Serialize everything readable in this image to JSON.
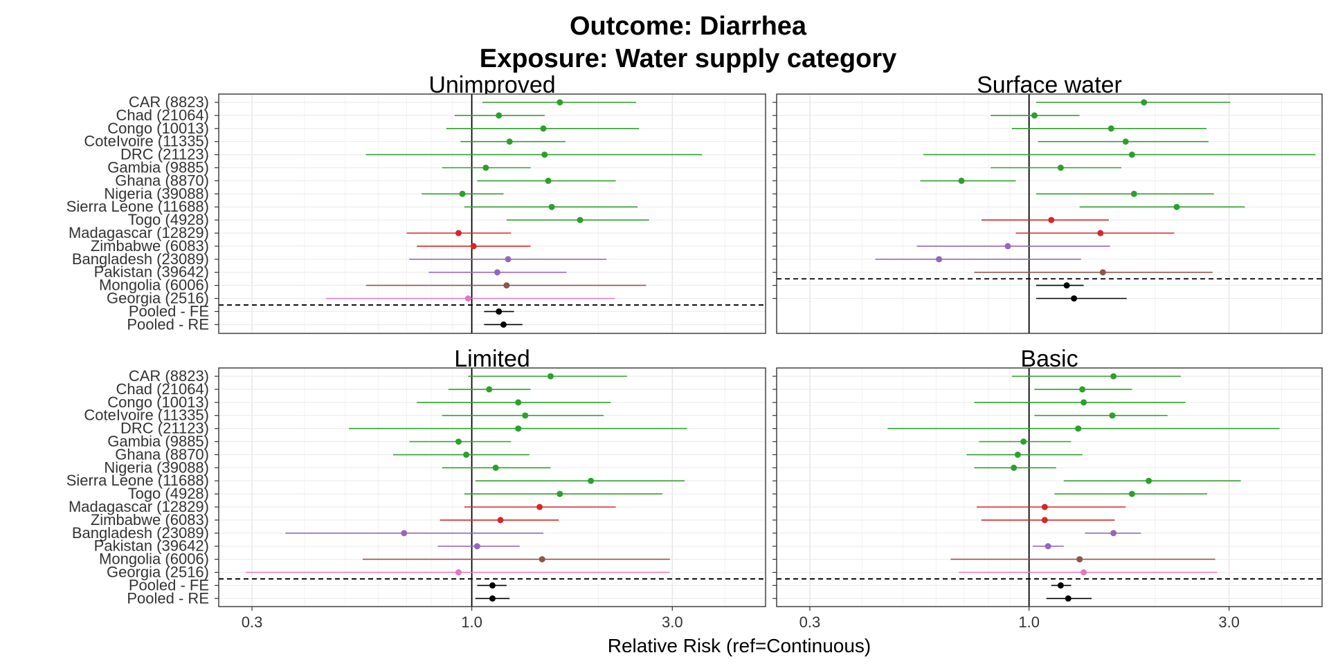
{
  "title_line1": "Outcome: Diarrhea",
  "title_line2": "Exposure: Water supply category",
  "xlabel": "Relative Risk (ref=Continuous)",
  "chart_data": {
    "type": "scatter",
    "subtype": "forest-plot",
    "x_scale": "log",
    "xlim": [
      0.25,
      5.0
    ],
    "x_ticks": [
      0.3,
      1.0,
      3.0
    ],
    "x_tick_labels": [
      "0.3",
      "1.0",
      "3.0"
    ],
    "reference_line": 1.0,
    "grid": true,
    "rows": [
      "CAR (8823)",
      "Chad (21064)",
      "Congo (10013)",
      "CoteIvoire (11335)",
      "DRC (21123)",
      "Gambia (9885)",
      "Ghana (8870)",
      "Nigeria (39088)",
      "Sierra Leone (11688)",
      "Togo (4928)",
      "Madagascar (12829)",
      "Zimbabwe (6083)",
      "Bangladesh (23089)",
      "Pakistan (39642)",
      "Mongolia (6006)",
      "Georgia (2516)",
      "Pooled - FE",
      "Pooled - RE"
    ],
    "row_colors": [
      "#2ca02c",
      "#2ca02c",
      "#2ca02c",
      "#2ca02c",
      "#2ca02c",
      "#2ca02c",
      "#2ca02c",
      "#2ca02c",
      "#2ca02c",
      "#2ca02c",
      "#d62728",
      "#d62728",
      "#9467bd",
      "#9467bd",
      "#8c564b",
      "#e377c2",
      "#000000",
      "#000000"
    ],
    "panels": [
      {
        "name": "Unimproved",
        "estimates": [
          1.62,
          1.16,
          1.48,
          1.23,
          1.49,
          1.08,
          1.52,
          0.95,
          1.55,
          1.81,
          0.93,
          1.01,
          1.22,
          1.15,
          1.21,
          0.98,
          1.16,
          1.19
        ],
        "lower": [
          1.06,
          0.91,
          0.87,
          0.94,
          0.56,
          0.85,
          1.03,
          0.76,
          0.96,
          1.21,
          0.7,
          0.74,
          0.71,
          0.79,
          0.56,
          0.45,
          1.07,
          1.07
        ],
        "upper": [
          2.46,
          1.49,
          2.5,
          1.67,
          3.53,
          1.38,
          2.2,
          1.19,
          2.48,
          2.64,
          1.24,
          1.38,
          2.09,
          1.68,
          2.6,
          2.19,
          1.26,
          1.32
        ]
      },
      {
        "name": "Surface water",
        "estimates": [
          1.88,
          1.03,
          1.57,
          1.7,
          1.76,
          1.19,
          0.69,
          1.78,
          2.25,
          1.13,
          1.48,
          0.89,
          0.61,
          1.5,
          1.23,
          1.28
        ],
        "lower": [
          1.04,
          0.81,
          0.91,
          1.05,
          0.56,
          0.81,
          0.55,
          1.04,
          1.32,
          0.77,
          0.93,
          0.54,
          0.43,
          0.74,
          1.04,
          1.04
        ],
        "upper": [
          3.02,
          1.32,
          2.65,
          2.68,
          4.82,
          1.66,
          0.93,
          2.76,
          3.27,
          1.55,
          2.22,
          1.56,
          1.33,
          2.74,
          1.35,
          1.71
        ],
        "rows": [
          "CAR (8823)",
          "Chad (21064)",
          "Congo (10013)",
          "CoteIvoire (11335)",
          "DRC (21123)",
          "Ghana (8870)",
          "Nigeria (39088)",
          "Sierra Leone (11688)",
          "Togo (4928)",
          "Madagascar (12829)",
          "Zimbabwe (6083)",
          "Bangladesh (23089)",
          "Pakistan (39642)",
          "Mongolia (6006)",
          "Pooled - FE",
          "Pooled - RE"
        ]
      },
      {
        "name": "Limited",
        "estimates": [
          1.54,
          1.1,
          1.29,
          1.34,
          1.29,
          0.93,
          0.97,
          1.14,
          1.92,
          1.62,
          1.45,
          1.17,
          0.69,
          1.03,
          1.47,
          0.93,
          1.12,
          1.12
        ],
        "lower": [
          0.98,
          0.88,
          0.74,
          0.85,
          0.51,
          0.71,
          0.65,
          0.85,
          1.02,
          0.96,
          0.96,
          0.84,
          0.36,
          0.83,
          0.55,
          0.29,
          1.03,
          1.02
        ],
        "upper": [
          2.34,
          1.38,
          2.14,
          2.06,
          3.25,
          1.24,
          1.37,
          1.54,
          3.21,
          2.84,
          2.2,
          1.61,
          1.48,
          1.3,
          2.96,
          2.96,
          1.21,
          1.23
        ]
      },
      {
        "name": "Basic",
        "estimates": [
          1.59,
          1.34,
          1.35,
          1.58,
          1.31,
          0.97,
          0.94,
          0.92,
          1.93,
          1.76,
          1.09,
          1.09,
          1.59,
          1.11,
          1.32,
          1.35,
          1.19,
          1.24
        ],
        "lower": [
          0.91,
          1.03,
          0.74,
          1.03,
          0.46,
          0.76,
          0.71,
          0.74,
          1.21,
          1.15,
          0.75,
          0.77,
          1.36,
          1.02,
          0.65,
          0.68,
          1.13,
          1.1
        ],
        "upper": [
          2.3,
          1.76,
          2.36,
          2.14,
          3.96,
          1.26,
          1.34,
          1.16,
          3.2,
          2.66,
          1.7,
          1.6,
          1.85,
          1.21,
          2.78,
          2.81,
          1.26,
          1.41
        ]
      }
    ]
  }
}
